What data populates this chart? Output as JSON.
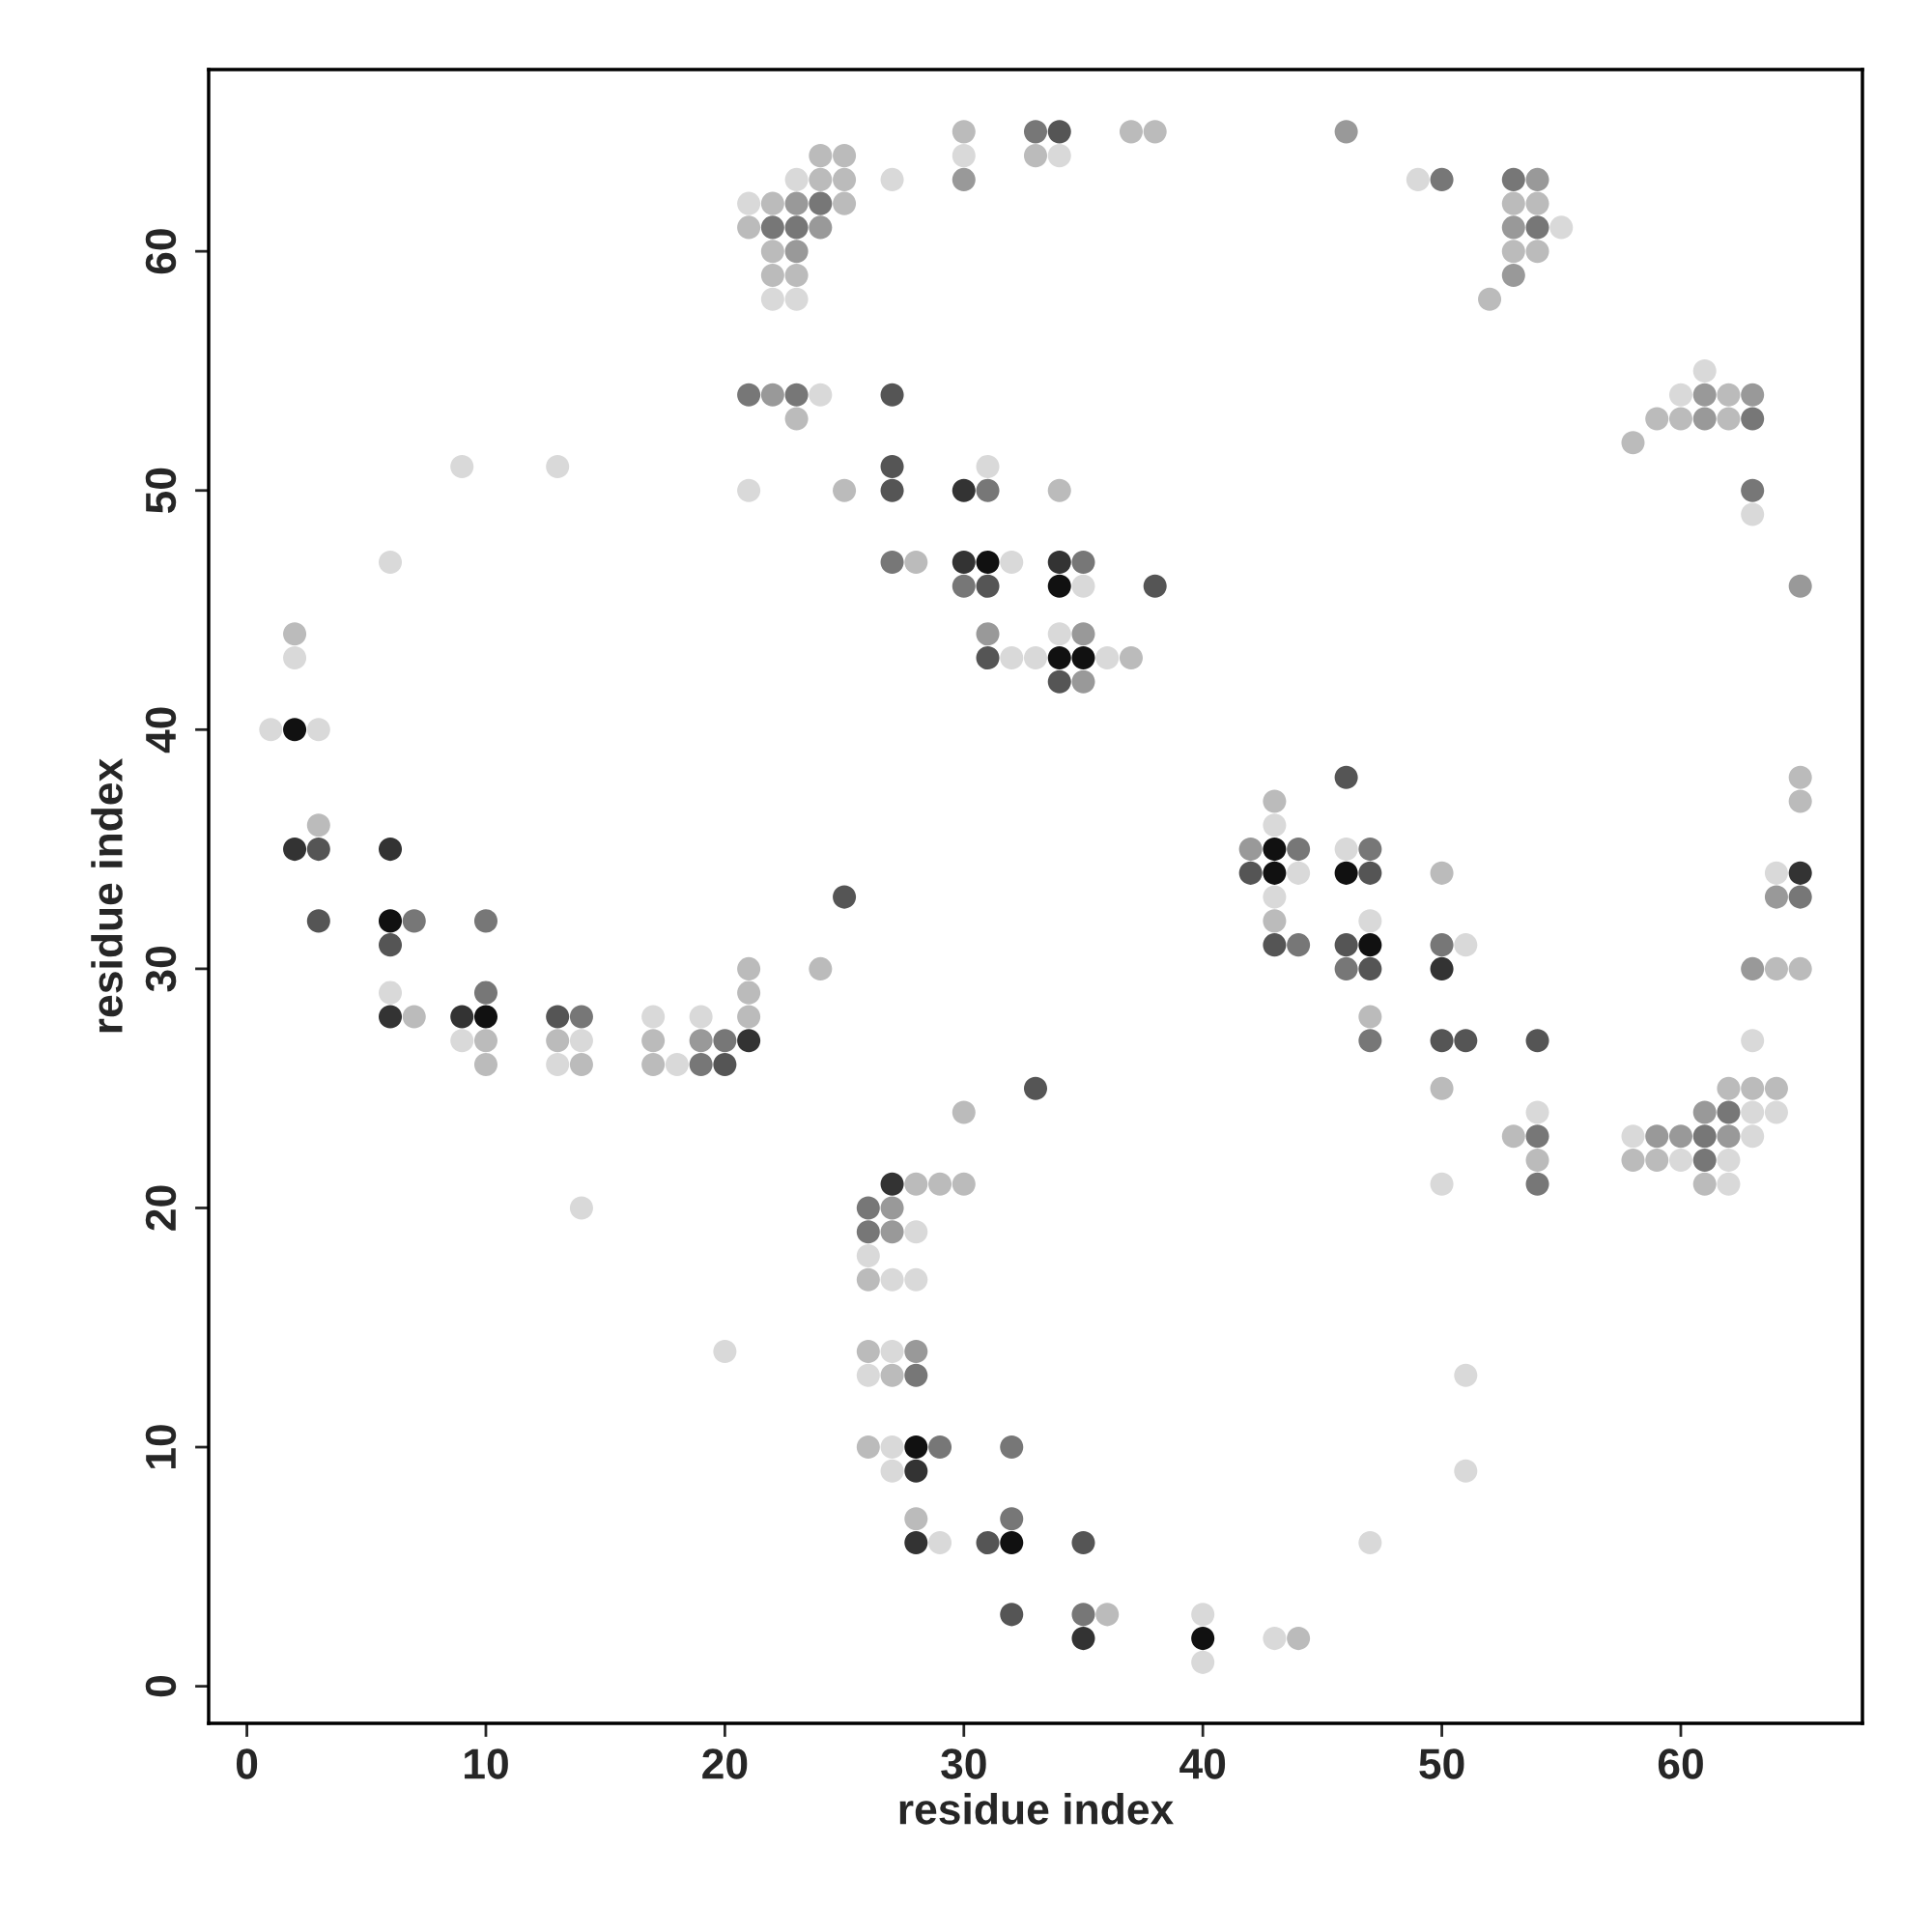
{
  "chart_data": {
    "type": "scatter",
    "xlabel": "residue index",
    "ylabel": "residue index",
    "xlim": [
      -1.6,
      67.6
    ],
    "ylim": [
      -1.55,
      67.6
    ],
    "xticks": [
      0,
      10,
      20,
      30,
      40,
      50,
      60
    ],
    "yticks": [
      0,
      10,
      20,
      30,
      40,
      50,
      60
    ],
    "grid": false,
    "legend": false,
    "marker": "circle",
    "series": [
      {
        "color": "#111111",
        "x": [
          31,
          34,
          34,
          35,
          2,
          6,
          10,
          28,
          32,
          40,
          43,
          43,
          46,
          47
        ],
        "values": [
          47,
          46,
          43,
          43,
          40,
          32,
          28,
          10,
          6,
          2,
          35,
          34,
          34,
          31
        ]
      },
      {
        "color": "#333333",
        "x": [
          30,
          30,
          34,
          2,
          6,
          6,
          9,
          21,
          27,
          28,
          28,
          35,
          50,
          65
        ],
        "values": [
          50,
          47,
          47,
          35,
          35,
          28,
          28,
          27,
          21,
          9,
          6,
          2,
          30,
          34
        ]
      },
      {
        "color": "#555555",
        "x": [
          34,
          27,
          27,
          27,
          31,
          38,
          31,
          34,
          3,
          3,
          6,
          13,
          20,
          25,
          31,
          35,
          33,
          32,
          42,
          43,
          46,
          47,
          46,
          47,
          50,
          51,
          54
        ],
        "values": [
          65,
          54,
          51,
          50,
          46,
          46,
          43,
          42,
          35,
          32,
          31,
          28,
          26,
          33,
          6,
          6,
          25,
          3,
          34,
          31,
          38,
          34,
          31,
          30,
          27,
          27,
          27
        ]
      },
      {
        "color": "#777777",
        "x": [
          33,
          24,
          22,
          23,
          50,
          53,
          54,
          63,
          63,
          21,
          23,
          31,
          27,
          30,
          35,
          7,
          10,
          10,
          14,
          20,
          19,
          26,
          26,
          28,
          29,
          32,
          32,
          35,
          44,
          44,
          47,
          46,
          47,
          50,
          54,
          54,
          61,
          61,
          62,
          65
        ],
        "values": [
          65,
          62,
          61,
          61,
          63,
          63,
          61,
          53,
          50,
          54,
          54,
          50,
          47,
          46,
          47,
          32,
          32,
          29,
          28,
          27,
          26,
          20,
          19,
          13,
          10,
          10,
          7,
          3,
          35,
          31,
          35,
          30,
          27,
          31,
          23,
          21,
          23,
          22,
          24,
          33
        ]
      },
      {
        "color": "#999999",
        "x": [
          30,
          46,
          23,
          24,
          23,
          54,
          53,
          53,
          61,
          63,
          61,
          65,
          22,
          31,
          35,
          35,
          19,
          27,
          27,
          28,
          42,
          59,
          60,
          62,
          61,
          63,
          64
        ],
        "values": [
          63,
          65,
          62,
          61,
          60,
          63,
          61,
          59,
          54,
          54,
          53,
          46,
          54,
          44,
          44,
          42,
          27,
          20,
          19,
          14,
          35,
          23,
          23,
          23,
          24,
          30,
          33
        ]
      },
      {
        "color": "#bbbbbb",
        "x": [
          30,
          33,
          37,
          38,
          24,
          25,
          24,
          25,
          22,
          25,
          21,
          22,
          22,
          23,
          53,
          54,
          53,
          54,
          52,
          62,
          59,
          60,
          62,
          58,
          23,
          25,
          34,
          28,
          37,
          2,
          3,
          7,
          10,
          10,
          13,
          14,
          17,
          17,
          21,
          21,
          21,
          24,
          28,
          29,
          30,
          30,
          26,
          26,
          27,
          26,
          28,
          36,
          44,
          43,
          43,
          47,
          50,
          50,
          53,
          54,
          58,
          59,
          61,
          62,
          63,
          64,
          64,
          65,
          65,
          65
        ],
        "values": [
          65,
          64,
          65,
          65,
          64,
          64,
          63,
          63,
          62,
          62,
          61,
          60,
          59,
          59,
          62,
          62,
          60,
          60,
          58,
          54,
          53,
          53,
          53,
          52,
          53,
          50,
          50,
          47,
          43,
          44,
          36,
          28,
          27,
          26,
          27,
          26,
          27,
          26,
          30,
          29,
          28,
          30,
          21,
          21,
          21,
          24,
          17,
          14,
          13,
          10,
          7,
          3,
          2,
          37,
          32,
          28,
          34,
          25,
          23,
          22,
          22,
          22,
          21,
          25,
          25,
          25,
          30,
          30,
          38,
          37
        ]
      },
      {
        "color": "#d9d9d9",
        "x": [
          30,
          34,
          23,
          27,
          21,
          22,
          23,
          49,
          55,
          61,
          60,
          63,
          24,
          9,
          13,
          21,
          31,
          6,
          32,
          35,
          32,
          33,
          34,
          36,
          2,
          1,
          3,
          6,
          9,
          14,
          13,
          17,
          18,
          19,
          14,
          20,
          28,
          26,
          27,
          28,
          27,
          26,
          27,
          27,
          29,
          40,
          40,
          43,
          43,
          44,
          43,
          46,
          47,
          47,
          51,
          50,
          51,
          51,
          54,
          58,
          63,
          60,
          62,
          62,
          63,
          64,
          63,
          64
        ],
        "values": [
          64,
          64,
          63,
          63,
          62,
          58,
          58,
          63,
          61,
          55,
          54,
          49,
          54,
          51,
          51,
          50,
          51,
          47,
          47,
          46,
          43,
          43,
          44,
          43,
          43,
          40,
          40,
          29,
          27,
          27,
          26,
          28,
          26,
          28,
          20,
          14,
          19,
          18,
          17,
          17,
          14,
          13,
          10,
          9,
          6,
          3,
          1,
          2,
          36,
          34,
          33,
          35,
          32,
          6,
          31,
          21,
          13,
          9,
          24,
          23,
          23,
          22,
          22,
          21,
          24,
          24,
          27,
          34
        ]
      }
    ]
  }
}
